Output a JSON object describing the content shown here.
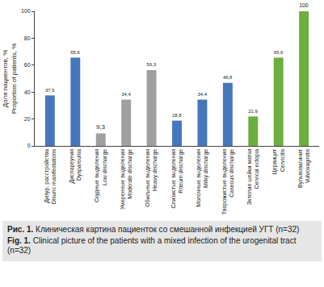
{
  "chart_data": {
    "type": "bar",
    "title": "Рис. 1. Клиническая картина пациенток со смешанной инфекцией УГТ (n=32)",
    "subtitle": "Fig. 1. Clinical picture of the patients with a mixed infection of the urogenital tract (n=32)",
    "y_label": "Доля пациентов, %\nProportion of patients, %",
    "categories": [
      "Дизур. расстройства\nDisuric manifestations",
      "Диспареуния\nDyspareunia",
      "Скудные выделения\nLow discharge",
      "Умеренные выделения\nModerate discharge",
      "Обильные выделения\nHeavy discharge",
      "Слизистые выделения\nRheum discharge",
      "Молочные выделения\nMilky discharge",
      "Творожистые выделения\nCaseous discharge",
      "Эктопия шейки матки\nCervical ectopia",
      "Цервицит\nCervicitis",
      "Вульвовагинит\nVulvovaginitis"
    ],
    "values": [
      37.5,
      65.6,
      9.3,
      34.4,
      56.3,
      18.8,
      34.4,
      46.8,
      21.9,
      65.6,
      100
    ],
    "value_labels": [
      "37,5",
      "65,6",
      "9,3",
      "34,4",
      "56,3",
      "18,8",
      "34,4",
      "46,8",
      "21,9",
      "65,6",
      "100"
    ],
    "data_labels": true,
    "colors": [
      "#4677bd",
      "#4677bd",
      "#a0a0a0",
      "#a0a0a0",
      "#a0a0a0",
      "#4677bd",
      "#4677bd",
      "#4677bd",
      "#6cae3f",
      "#6cae3f",
      "#6cae3f"
    ],
    "ylim": [
      0,
      100
    ],
    "yticks": [
      0,
      20,
      40,
      60,
      80,
      100
    ],
    "grid": false
  }
}
